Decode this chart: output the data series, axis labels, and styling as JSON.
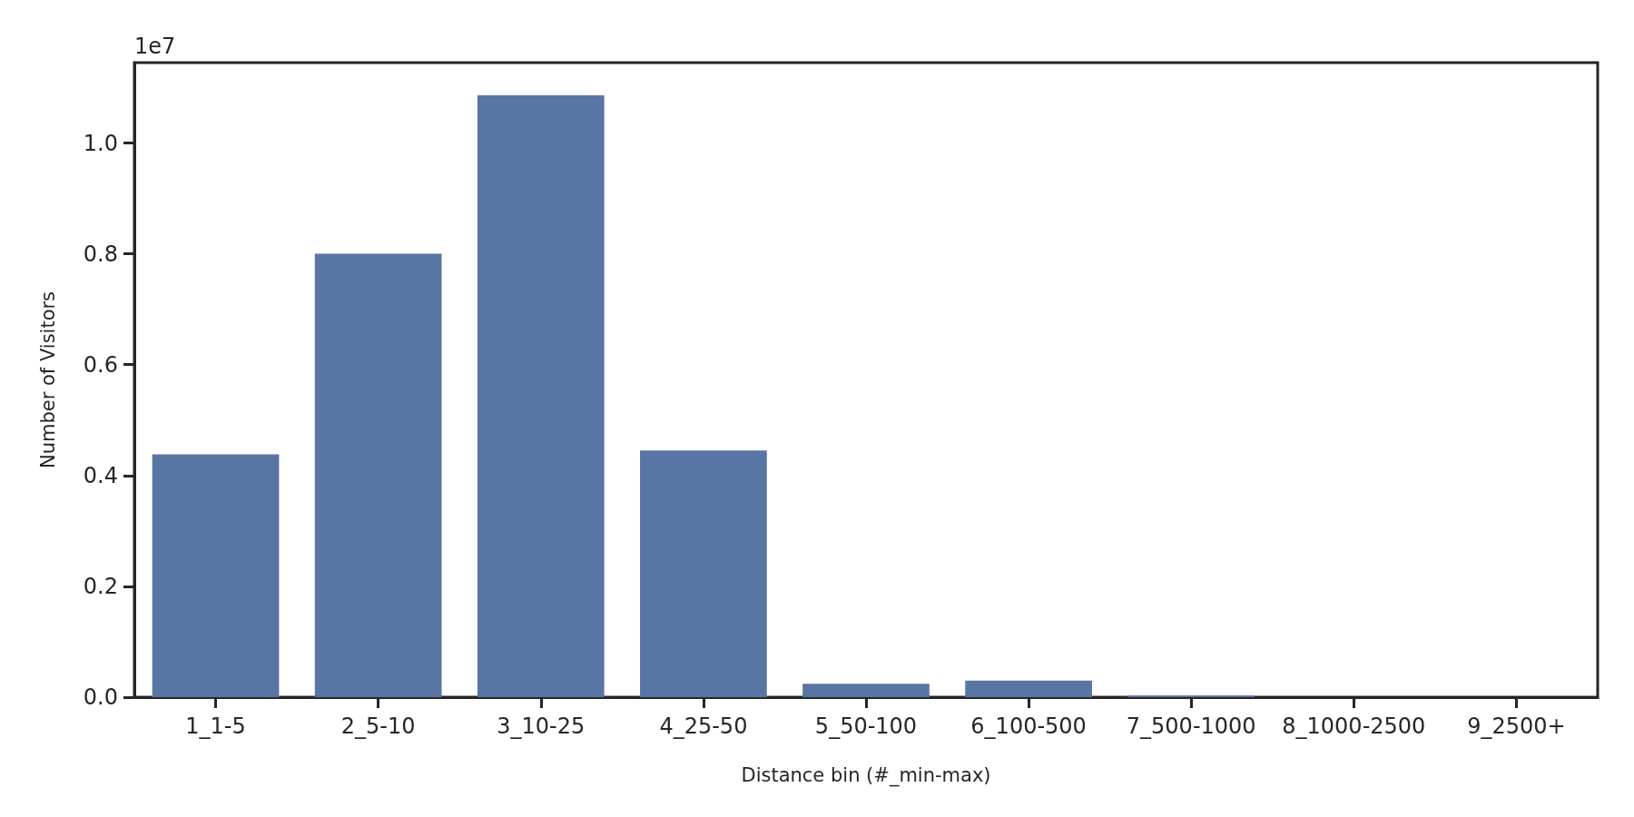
{
  "chart_data": {
    "type": "bar",
    "xlabel": "Distance bin (#_min-max)",
    "ylabel": "Number of Visitors",
    "categories": [
      "1_1-5",
      "2_5-10",
      "3_10-25",
      "4_25-50",
      "5_50-100",
      "6_100-500",
      "7_500-1000",
      "8_1000-2500",
      "9_2500+"
    ],
    "values": [
      0.438,
      0.8,
      1.086,
      0.445,
      0.024,
      0.03,
      0.003,
      0,
      0
    ],
    "color": "#5875a4",
    "ylim": [
      0,
      1.145
    ],
    "yticks": [
      {
        "value": 0,
        "label": "0.0"
      },
      0.2,
      0.4,
      0.6,
      0.8,
      {
        "value": 1,
        "label": "1.0"
      }
    ],
    "annotations": [
      "1e7"
    ],
    "grid": false
  }
}
